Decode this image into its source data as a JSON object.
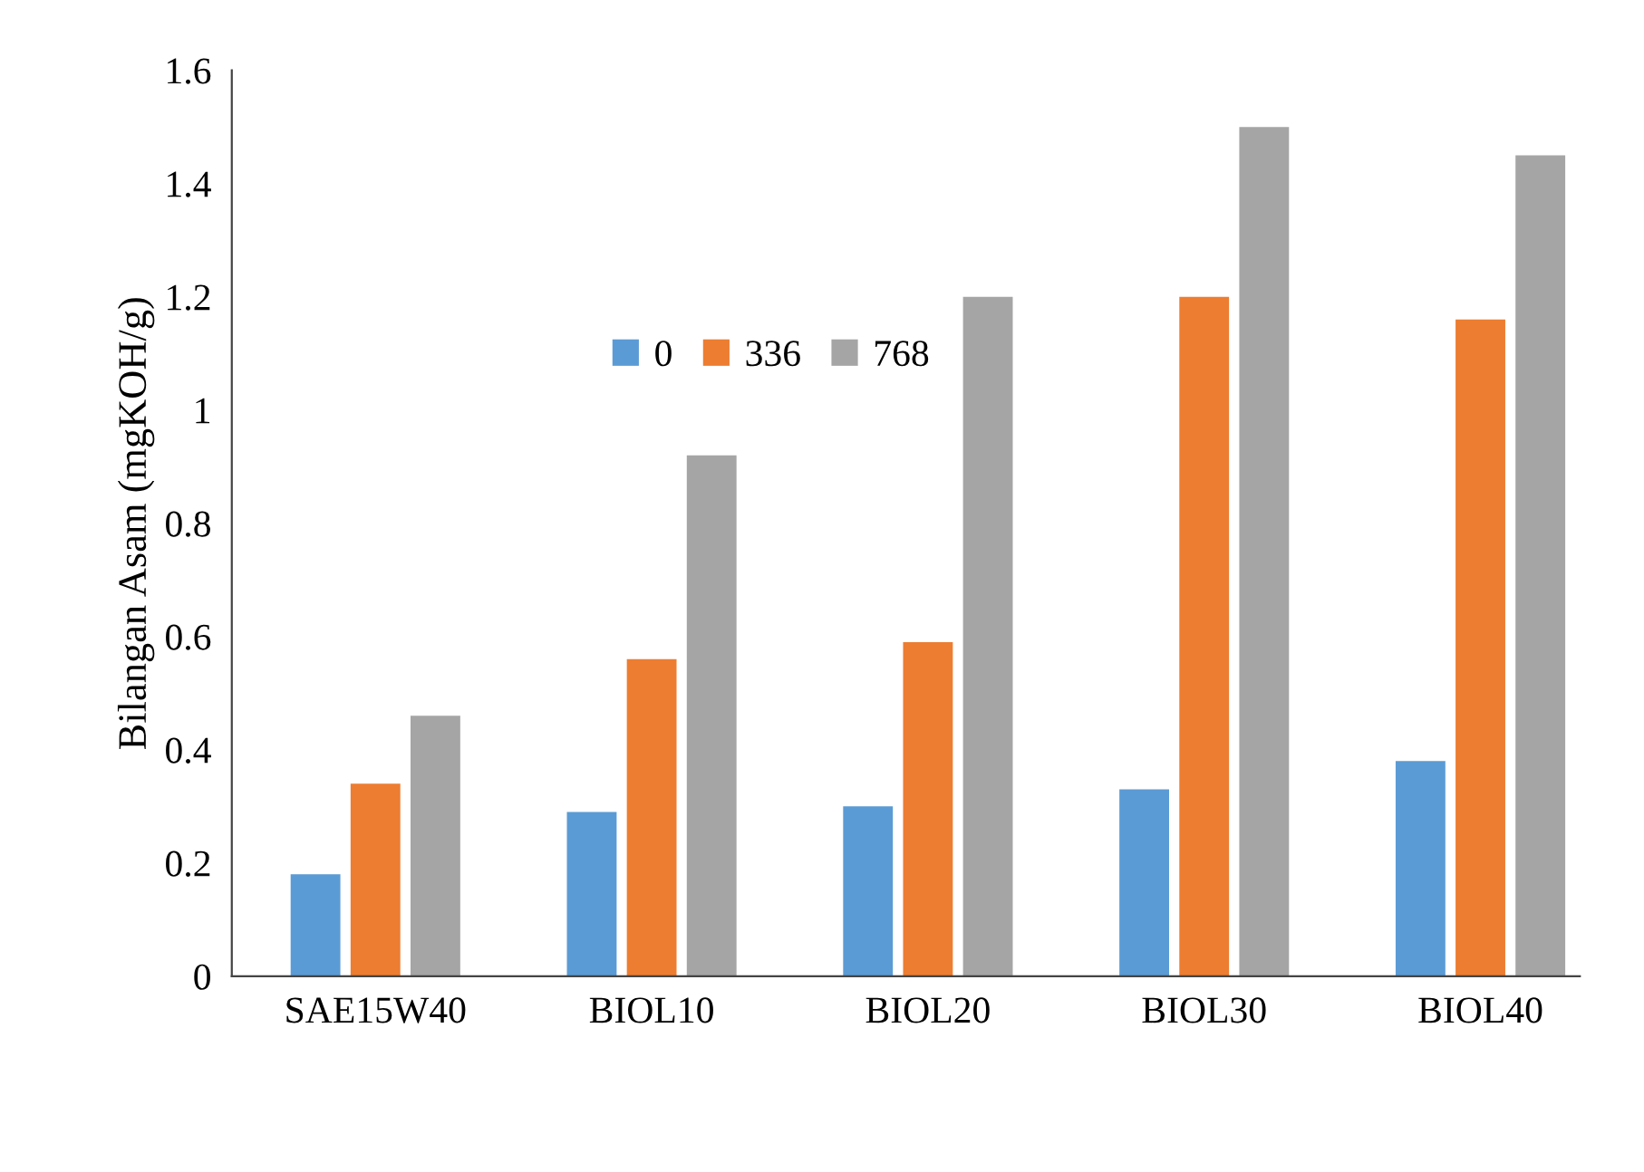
{
  "chart_data": {
    "type": "bar",
    "ylabel": "Bilangan Asam (mgKOH/g)",
    "categories": [
      "SAE15W40",
      "BIOL10",
      "BIOL20",
      "BIOL30",
      "BIOL40"
    ],
    "series": [
      {
        "name": "0",
        "color": "#5b9bd5",
        "values": [
          0.18,
          0.29,
          0.3,
          0.33,
          0.38
        ]
      },
      {
        "name": "336",
        "color": "#ed7d31",
        "values": [
          0.34,
          0.56,
          0.59,
          1.2,
          1.16
        ]
      },
      {
        "name": "768",
        "color": "#a5a5a5",
        "values": [
          0.46,
          0.92,
          1.2,
          1.5,
          1.45
        ]
      }
    ],
    "ylim": [
      0,
      1.6
    ],
    "yticks": [
      0,
      {
        "value": 0.2,
        "label": "0.2"
      },
      {
        "value": 0.4,
        "label": "0.4"
      },
      {
        "value": 0.6,
        "label": "0.6"
      },
      {
        "value": 0.8,
        "label": "0.8"
      },
      1,
      {
        "value": 1.2,
        "label": "1.2"
      },
      {
        "value": 1.4,
        "label": "1.4"
      },
      {
        "value": 1.6,
        "label": "1.6"
      }
    ],
    "grid": false,
    "legend": "top"
  }
}
